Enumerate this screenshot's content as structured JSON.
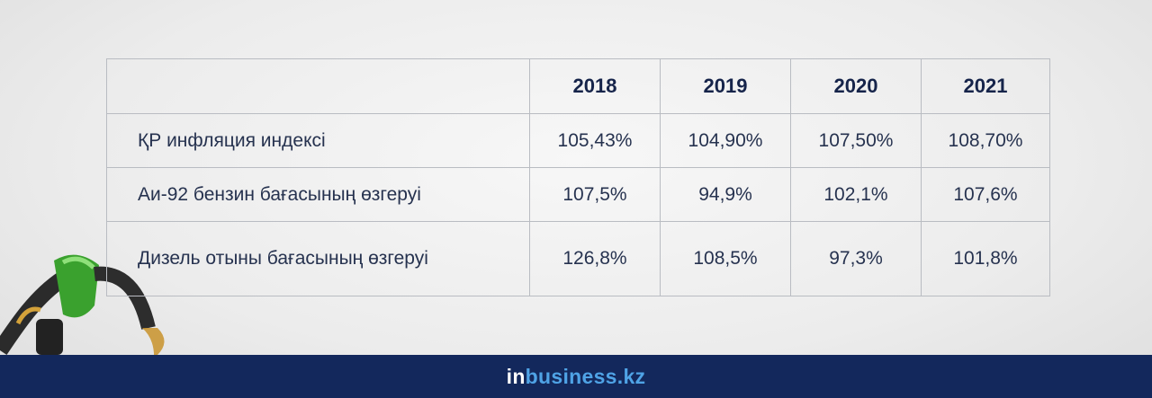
{
  "table": {
    "header": [
      "2018",
      "2019",
      "2020",
      "2021"
    ],
    "rows": [
      {
        "label": "ҚР инфляция индексі",
        "values": [
          "105,43%",
          "104,90%",
          "107,50%",
          "108,70%"
        ]
      },
      {
        "label": "Аи-92 бензин бағасының өзгеруі",
        "values": [
          "107,5%",
          "94,9%",
          "102,1%",
          "107,6%"
        ]
      },
      {
        "label": "Дизель отыны бағасының өзгеруі",
        "values": [
          "126,8%",
          "108,5%",
          "97,3%",
          "101,8%"
        ]
      }
    ]
  },
  "footer": {
    "logo_prefix": "in",
    "logo_name": "business.kz"
  }
}
